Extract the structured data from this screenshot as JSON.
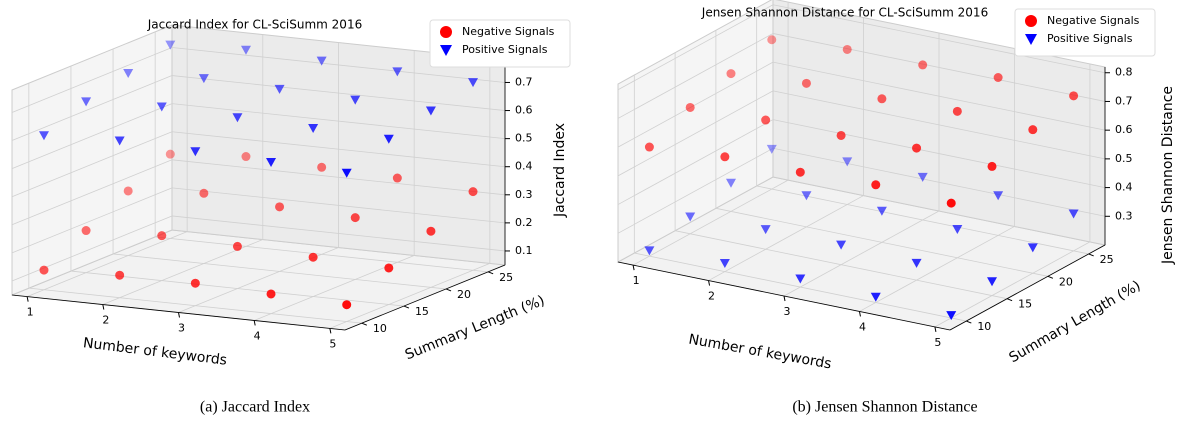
{
  "chart_data": [
    {
      "type": "scatter3d",
      "title": "Jaccard Index for CL-SciSumm 2016",
      "caption": "(a) Jaccard Index",
      "xlabel": "Number of keywords",
      "ylabel": "Summary Length (%)",
      "zlabel": "Jaccard Index",
      "xlim": [
        0.8,
        5.2
      ],
      "xticks": [
        1,
        2,
        3,
        4,
        5
      ],
      "ylim": [
        8,
        27
      ],
      "yticks": [
        10,
        15,
        20,
        25
      ],
      "zlim": [
        0.05,
        0.78
      ],
      "zticks": [
        0.1,
        0.2,
        0.3,
        0.4,
        0.5,
        0.6,
        0.7
      ],
      "grid": true,
      "legend": "upper right",
      "series": [
        {
          "name": "Negative Signals",
          "color": "#ff0000",
          "marker": "circle",
          "x": [
            1,
            1,
            1,
            1,
            2,
            2,
            2,
            2,
            3,
            3,
            3,
            3,
            4,
            4,
            4,
            4,
            5,
            5,
            5,
            5
          ],
          "y": [
            10,
            15,
            20,
            25,
            10,
            15,
            20,
            25,
            10,
            15,
            20,
            25,
            10,
            15,
            20,
            25,
            10,
            15,
            20,
            25
          ],
          "z": [
            0.12,
            0.2,
            0.28,
            0.35,
            0.13,
            0.21,
            0.3,
            0.37,
            0.13,
            0.2,
            0.28,
            0.36,
            0.12,
            0.19,
            0.27,
            0.35,
            0.11,
            0.18,
            0.25,
            0.33
          ]
        },
        {
          "name": "Positive Signals",
          "color": "#0000ff",
          "marker": "triangle",
          "x": [
            1,
            1,
            1,
            1,
            2,
            2,
            2,
            2,
            3,
            3,
            3,
            3,
            4,
            4,
            4,
            4,
            5,
            5,
            5,
            5
          ],
          "y": [
            10,
            15,
            20,
            25,
            10,
            15,
            20,
            25,
            10,
            15,
            20,
            25,
            10,
            15,
            20,
            25,
            10,
            15,
            20,
            25
          ],
          "z": [
            0.6,
            0.66,
            0.7,
            0.74,
            0.61,
            0.67,
            0.71,
            0.75,
            0.6,
            0.66,
            0.7,
            0.74,
            0.59,
            0.65,
            0.69,
            0.73,
            0.58,
            0.64,
            0.68,
            0.72
          ]
        }
      ]
    },
    {
      "type": "scatter3d",
      "title": "Jensen Shannon Distance for CL-SciSumm 2016",
      "caption": "(b) Jensen Shannon Distance",
      "xlabel": "Number of keywords",
      "ylabel": "Summary Length (%)",
      "zlabel": "Jensen Shannon Distance",
      "xlim": [
        0.8,
        5.2
      ],
      "xticks": [
        1,
        2,
        3,
        4,
        5
      ],
      "ylim": [
        8,
        27
      ],
      "yticks": [
        10,
        15,
        20,
        25
      ],
      "zlim": [
        0.2,
        0.82
      ],
      "zticks": [
        0.3,
        0.4,
        0.5,
        0.6,
        0.7,
        0.8
      ],
      "grid": true,
      "legend": "upper right",
      "series": [
        {
          "name": "Negative Signals",
          "color": "#ff0000",
          "marker": "circle",
          "x": [
            1,
            1,
            1,
            1,
            2,
            2,
            2,
            2,
            3,
            3,
            3,
            3,
            4,
            4,
            4,
            4,
            5,
            5,
            5,
            5
          ],
          "y": [
            10,
            15,
            20,
            25,
            10,
            15,
            20,
            25,
            10,
            15,
            20,
            25,
            10,
            15,
            20,
            25,
            10,
            15,
            20,
            25
          ],
          "z": [
            0.58,
            0.64,
            0.68,
            0.72,
            0.6,
            0.65,
            0.7,
            0.74,
            0.6,
            0.65,
            0.7,
            0.74,
            0.61,
            0.66,
            0.71,
            0.75,
            0.6,
            0.65,
            0.7,
            0.74
          ]
        },
        {
          "name": "Positive Signals",
          "color": "#0000ff",
          "marker": "triangle",
          "x": [
            1,
            1,
            1,
            1,
            2,
            2,
            2,
            2,
            3,
            3,
            3,
            3,
            4,
            4,
            4,
            4,
            5,
            5,
            5,
            5
          ],
          "y": [
            10,
            15,
            20,
            25,
            10,
            15,
            20,
            25,
            10,
            15,
            20,
            25,
            10,
            15,
            20,
            25,
            10,
            15,
            20,
            25
          ],
          "z": [
            0.22,
            0.26,
            0.3,
            0.34,
            0.23,
            0.27,
            0.31,
            0.35,
            0.23,
            0.27,
            0.31,
            0.35,
            0.22,
            0.26,
            0.3,
            0.34,
            0.21,
            0.25,
            0.29,
            0.33
          ]
        }
      ]
    }
  ]
}
